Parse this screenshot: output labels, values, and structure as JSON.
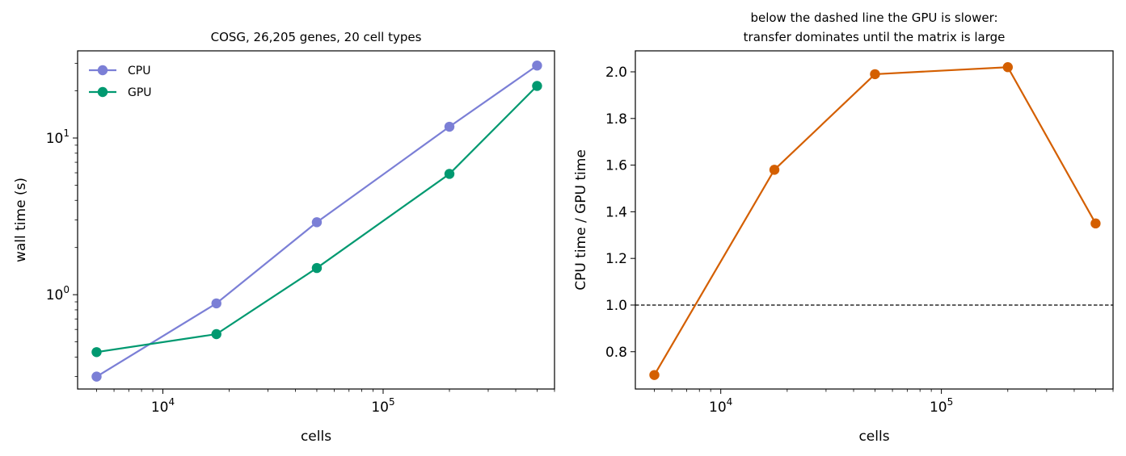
{
  "chart_data": [
    {
      "type": "line",
      "title": "COSG, 26,205 genes, 20 cell types",
      "xlabel": "cells",
      "ylabel": "wall time (s)",
      "xscale": "log",
      "yscale": "log",
      "xlim": [
        4100,
        600000
      ],
      "ylim": [
        0.25,
        36
      ],
      "xticks": [
        {
          "value": 10000,
          "base": "10",
          "exp": "4"
        },
        {
          "value": 100000,
          "base": "10",
          "exp": "5"
        }
      ],
      "yticks": [
        {
          "value": 1,
          "base": "10",
          "exp": "0"
        },
        {
          "value": 10,
          "base": "10",
          "exp": "1"
        }
      ],
      "legend_position": "upper-left",
      "x": [
        5000,
        17500,
        50000,
        200000,
        500000
      ],
      "series": [
        {
          "name": "CPU",
          "color": "#7b7fd6",
          "values": [
            0.3,
            0.88,
            2.9,
            11.8,
            29.0
          ]
        },
        {
          "name": "GPU",
          "color": "#009970",
          "values": [
            0.43,
            0.56,
            1.48,
            5.9,
            21.5
          ]
        }
      ]
    },
    {
      "type": "line",
      "title": "below the dashed line the GPU is slower:\ntransfer dominates until the matrix is large",
      "xlabel": "cells",
      "ylabel": "CPU time / GPU time",
      "xscale": "log",
      "yscale": "linear",
      "xlim": [
        4100,
        600000
      ],
      "ylim": [
        0.64,
        2.09
      ],
      "xticks": [
        {
          "value": 10000,
          "base": "10",
          "exp": "4"
        },
        {
          "value": 100000,
          "base": "10",
          "exp": "5"
        }
      ],
      "yticks": [
        {
          "value": 0.8,
          "label": "0.8"
        },
        {
          "value": 1.0,
          "label": "1.0"
        },
        {
          "value": 1.2,
          "label": "1.2"
        },
        {
          "value": 1.4,
          "label": "1.4"
        },
        {
          "value": 1.6,
          "label": "1.6"
        },
        {
          "value": 1.8,
          "label": "1.8"
        },
        {
          "value": 2.0,
          "label": "2.0"
        }
      ],
      "reference_line": {
        "value": 1.0,
        "style": "dashed",
        "color": "#000000"
      },
      "x": [
        5000,
        17500,
        50000,
        200000,
        500000
      ],
      "series": [
        {
          "color": "#d45f00",
          "values": [
            0.7,
            1.58,
            1.99,
            2.02,
            1.35
          ]
        }
      ]
    }
  ]
}
